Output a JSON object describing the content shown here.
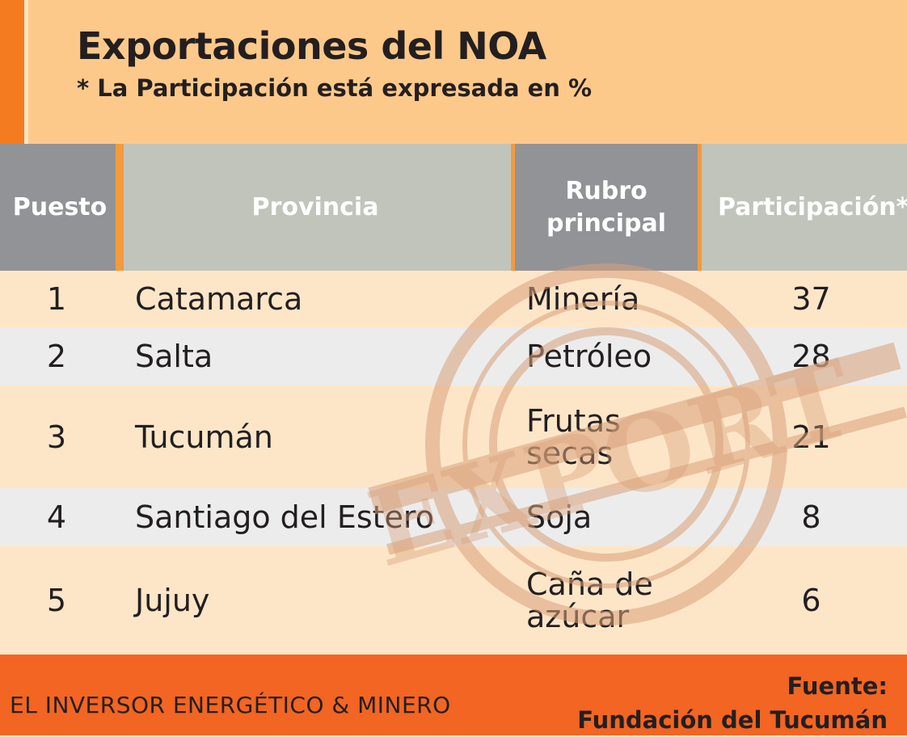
{
  "header": {
    "title": "Exportaciones del NOA",
    "subtitle": "* La Participación está expresada en %"
  },
  "chart_data": {
    "type": "table",
    "columns": [
      "Puesto",
      "Provincia",
      "Rubro principal",
      "Participación*"
    ],
    "rows": [
      {
        "puesto": "1",
        "provincia": "Catamarca",
        "rubro": [
          "Minería"
        ],
        "participacion": "37"
      },
      {
        "puesto": "2",
        "provincia": "Salta",
        "rubro": [
          "Petróleo"
        ],
        "participacion": "28"
      },
      {
        "puesto": "3",
        "provincia": "Tucumán",
        "rubro": [
          "Frutas",
          "secas"
        ],
        "participacion": "21"
      },
      {
        "puesto": "4",
        "provincia": "Santiago del Estero",
        "rubro": [
          "Soja"
        ],
        "participacion": "8"
      },
      {
        "puesto": "5",
        "provincia": "Jujuy",
        "rubro": [
          "Caña de",
          "azúcar"
        ],
        "participacion": "6"
      }
    ]
  },
  "header_lines": {
    "rubro": [
      "Rubro",
      "principal"
    ]
  },
  "stamp": {
    "text": "EXPORT",
    "color": "#d9a07a"
  },
  "footer": {
    "brand": "EL INVERSOR ENERGÉTICO & MINERO",
    "source_label": "Fuente:",
    "source_name": "Fundación del Tucumán"
  },
  "colors": {
    "accent": "#f47b20",
    "header_bg": "#fdc98a",
    "row_base": "#fde6c8",
    "row_alt": "#ececec",
    "th_dark": "#929397",
    "th_light": "#c1c4bb",
    "footer": "#f26522"
  }
}
